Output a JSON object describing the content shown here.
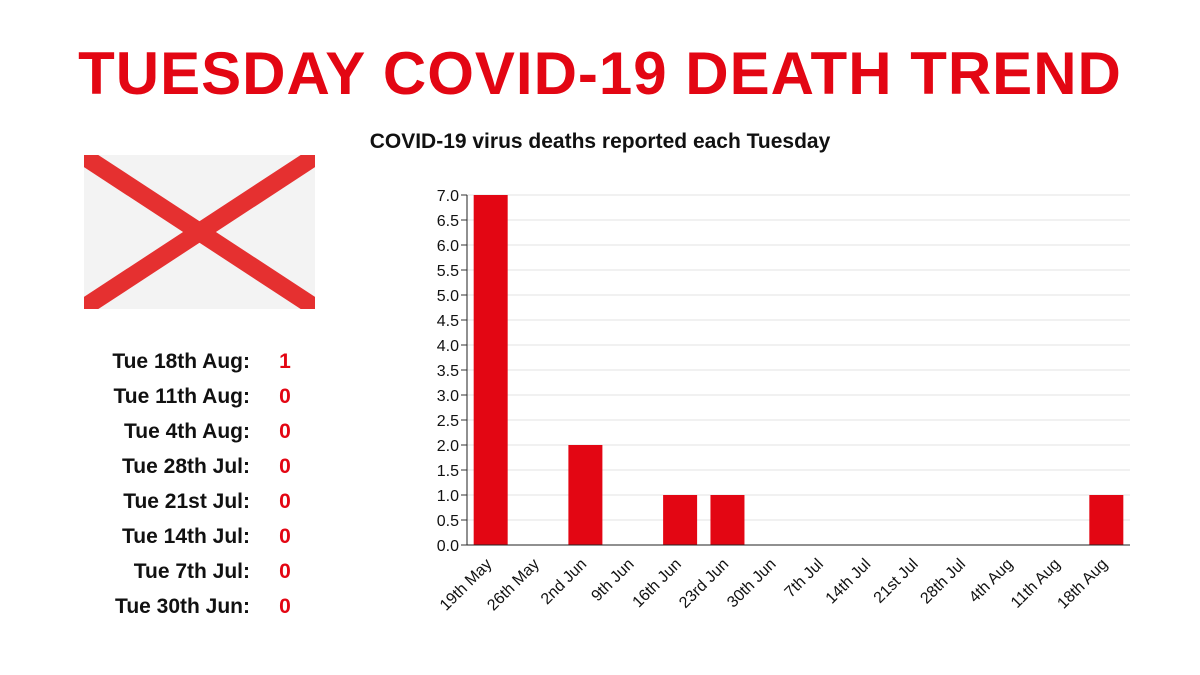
{
  "header": {
    "title": "TUESDAY COVID-19 DEATH TREND",
    "subtitle": "COVID-19 virus deaths reported each Tuesday"
  },
  "colors": {
    "accent": "#e30613",
    "flag_cross": "#e53030",
    "flag_bg": "#f3f3f3"
  },
  "flag": {
    "icon": "saltire-flag-icon"
  },
  "daily_list": [
    {
      "label": "Tue 18th Aug:",
      "value": "1"
    },
    {
      "label": "Tue 11th Aug:",
      "value": "0"
    },
    {
      "label": "Tue 4th Aug:",
      "value": "0"
    },
    {
      "label": "Tue 28th Jul:",
      "value": "0"
    },
    {
      "label": "Tue 21st Jul:",
      "value": "0"
    },
    {
      "label": "Tue 14th Jul:",
      "value": "0"
    },
    {
      "label": "Tue 7th Jul:",
      "value": "0"
    },
    {
      "label": "Tue 30th Jun:",
      "value": "0"
    }
  ],
  "chart_data": {
    "type": "bar",
    "title": "COVID-19 virus deaths reported each Tuesday",
    "xlabel": "",
    "ylabel": "",
    "categories": [
      "19th May",
      "26th May",
      "2nd Jun",
      "9th Jun",
      "16th Jun",
      "23rd Jun",
      "30th Jun",
      "7th Jul",
      "14th Jul",
      "21st Jul",
      "28th Jul",
      "4th Aug",
      "11th Aug",
      "18th Aug"
    ],
    "values": [
      7,
      0,
      2,
      0,
      1,
      1,
      0,
      0,
      0,
      0,
      0,
      0,
      0,
      1
    ],
    "ylim": [
      0,
      7
    ],
    "yticks": [
      "0.0",
      "0.5",
      "1.0",
      "1.5",
      "2.0",
      "2.5",
      "3.0",
      "3.5",
      "4.0",
      "4.5",
      "5.0",
      "5.5",
      "6.0",
      "6.5",
      "7.0"
    ],
    "grid": true,
    "legend": "none"
  }
}
